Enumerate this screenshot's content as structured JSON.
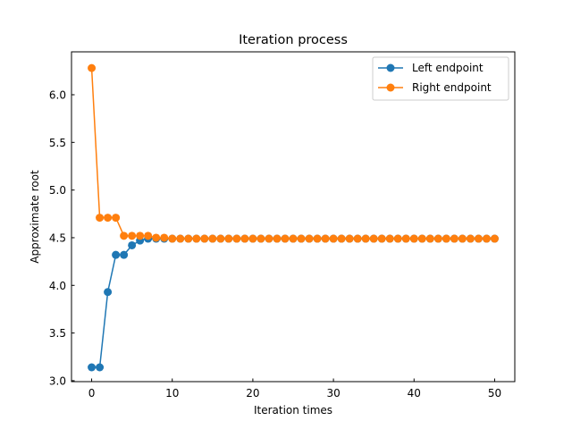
{
  "chart_data": {
    "type": "line",
    "title": "Iteration process",
    "xlabel": "Iteration times",
    "ylabel": "Approximate root",
    "xlim": [
      -2.5,
      52.5
    ],
    "ylim": [
      2.99,
      6.45
    ],
    "xticks": [
      0,
      10,
      20,
      30,
      40,
      50
    ],
    "yticks": [
      3.0,
      3.5,
      4.0,
      4.5,
      5.0,
      5.5,
      6.0
    ],
    "ytick_labels": [
      "3.0",
      "3.5",
      "4.0",
      "4.5",
      "5.0",
      "5.5",
      "6.0"
    ],
    "grid": false,
    "legend_position": "top-right",
    "x": [
      0,
      1,
      2,
      3,
      4,
      5,
      6,
      7,
      8,
      9,
      10,
      11,
      12,
      13,
      14,
      15,
      16,
      17,
      18,
      19,
      20,
      21,
      22,
      23,
      24,
      25,
      26,
      27,
      28,
      29,
      30,
      31,
      32,
      33,
      34,
      35,
      36,
      37,
      38,
      39,
      40,
      41,
      42,
      43,
      44,
      45,
      46,
      47,
      48,
      49,
      50
    ],
    "series": [
      {
        "name": "Left endpoint",
        "color": "#1f77b4",
        "values": [
          3.14,
          3.14,
          3.93,
          4.32,
          4.32,
          4.42,
          4.47,
          4.49,
          4.49,
          4.49,
          4.49,
          4.49,
          4.49,
          4.49,
          4.49,
          4.49,
          4.49,
          4.49,
          4.49,
          4.49,
          4.49,
          4.49,
          4.49,
          4.49,
          4.49,
          4.49,
          4.49,
          4.49,
          4.49,
          4.49,
          4.49,
          4.49,
          4.49,
          4.49,
          4.49,
          4.49,
          4.49,
          4.49,
          4.49,
          4.49,
          4.49,
          4.49,
          4.49,
          4.49,
          4.49,
          4.49,
          4.49,
          4.49,
          4.49,
          4.49,
          4.49
        ]
      },
      {
        "name": "Right endpoint",
        "color": "#ff7f0e",
        "values": [
          6.28,
          4.71,
          4.71,
          4.71,
          4.52,
          4.52,
          4.52,
          4.52,
          4.5,
          4.5,
          4.49,
          4.49,
          4.49,
          4.49,
          4.49,
          4.49,
          4.49,
          4.49,
          4.49,
          4.49,
          4.49,
          4.49,
          4.49,
          4.49,
          4.49,
          4.49,
          4.49,
          4.49,
          4.49,
          4.49,
          4.49,
          4.49,
          4.49,
          4.49,
          4.49,
          4.49,
          4.49,
          4.49,
          4.49,
          4.49,
          4.49,
          4.49,
          4.49,
          4.49,
          4.49,
          4.49,
          4.49,
          4.49,
          4.49,
          4.49,
          4.49
        ]
      }
    ]
  }
}
